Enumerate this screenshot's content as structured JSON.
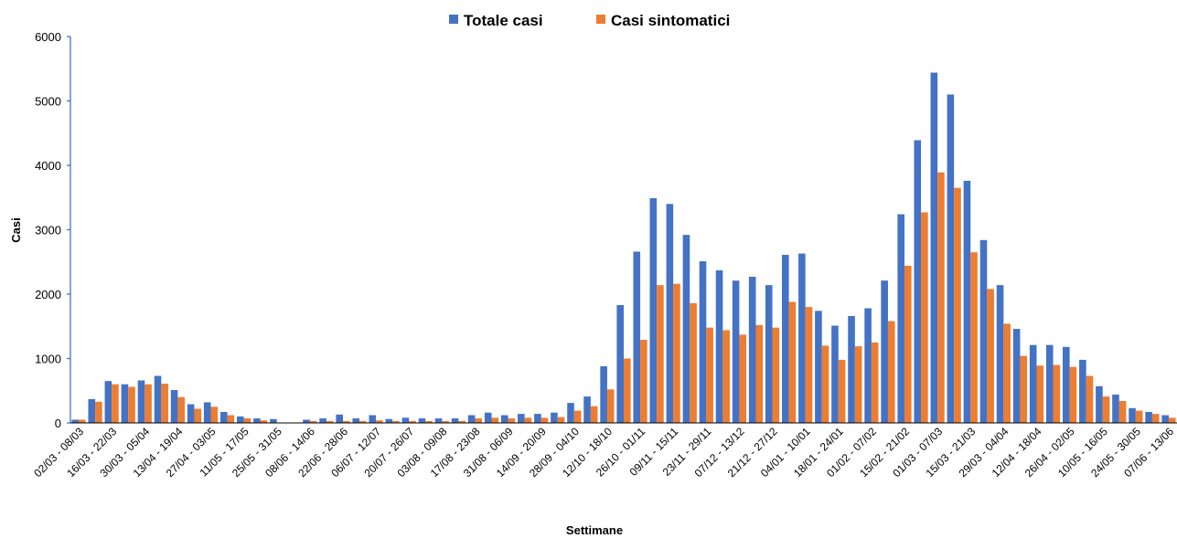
{
  "chart_data": {
    "type": "bar",
    "title": "",
    "xlabel": "Settimane",
    "ylabel": "Casi",
    "ylim": [
      0,
      6000
    ],
    "yticks": [
      "0",
      "1000",
      "2000",
      "3000",
      "4000",
      "5000",
      "6000"
    ],
    "grid": false,
    "legend_position": "top-center",
    "categories": [
      "02/03 - 08/03",
      "09/03 - 15/03",
      "16/03 - 22/03",
      "23/03 - 29/03",
      "30/03 - 05/04",
      "06/04 - 12/04",
      "13/04 - 19/04",
      "20/04 - 26/04",
      "27/04 - 03/05",
      "04/05 - 10/05",
      "11/05 - 17/05",
      "18/05 - 24/05",
      "25/05 - 31/05",
      "01/06 - 07/06",
      "08/06 - 14/06",
      "15/06 - 21/06",
      "22/06 - 28/06",
      "29/06 - 05/07",
      "06/07 - 12/07",
      "13/07 - 19/07",
      "20/07 - 26/07",
      "27/07 - 02/08",
      "03/08 - 09/08",
      "10/08 - 16/08",
      "17/08 - 23/08",
      "24/08 - 30/08",
      "31/08 - 06/09",
      "07/09 - 13/09",
      "14/09 - 20/09",
      "21/09 - 27/09",
      "28/09 - 04/10",
      "05/10 - 11/10",
      "12/10 - 18/10",
      "19/10 - 25/10",
      "26/10 - 01/11",
      "02/11 - 08/11",
      "09/11 - 15/11",
      "16/11 - 22/11",
      "23/11 - 29/11",
      "30/11 - 06/12",
      "07/12 - 13/12",
      "14/12 - 20/12",
      "21/12 - 27/12",
      "28/12 - 03/01",
      "04/01 - 10/01",
      "11/01 - 17/01",
      "18/01 - 24/01",
      "25/01 - 31/01",
      "01/02 - 07/02",
      "08/02 - 14/02",
      "15/02 - 21/02",
      "22/02 - 28/02",
      "01/03 - 07/03",
      "08/03 - 14/03",
      "15/03 - 21/03",
      "22/03 - 28/03",
      "29/03 - 04/04",
      "05/04 - 11/04",
      "12/04 - 18/04",
      "19/04 - 25/04",
      "26/04 - 02/05",
      "03/05 - 09/05",
      "10/05 - 16/05",
      "17/05 - 23/05",
      "24/05 - 30/05",
      "31/05 - 06/06",
      "07/06 - 13/06"
    ],
    "shown_category_labels": [
      "02/03 - 08/03",
      "16/03 - 22/03",
      "30/03 - 05/04",
      "13/04 - 19/04",
      "27/04 - 03/05",
      "11/05 - 17/05",
      "25/05 - 31/05",
      "08/06 - 14/06",
      "22/06 - 28/06",
      "06/07 - 12/07",
      "20/07 - 26/07",
      "03/08 - 09/08",
      "17/08 - 23/08",
      "31/08 - 06/09",
      "14/09 - 20/09",
      "28/09 - 04/10",
      "12/10 - 18/10",
      "26/10 - 01/11",
      "09/11 - 15/11",
      "23/11 - 29/11",
      "07/12 - 13/12",
      "21/12 - 27/12",
      "04/01 - 10/01",
      "18/01 - 24/01",
      "01/02 - 07/02",
      "15/02 - 21/02",
      "01/03 - 07/03",
      "15/03 - 21/03",
      "29/03 - 04/04",
      "12/04 - 18/04",
      "26/04 - 02/05",
      "10/05 - 16/05",
      "24/05 - 30/05",
      "07/06 - 13/06"
    ],
    "series": [
      {
        "name": "Totale casi",
        "color": "#4472C4",
        "values": [
          50,
          370,
          650,
          600,
          660,
          730,
          510,
          290,
          320,
          170,
          100,
          70,
          60,
          0,
          50,
          70,
          130,
          70,
          120,
          60,
          80,
          70,
          70,
          70,
          120,
          160,
          120,
          140,
          140,
          160,
          310,
          410,
          880,
          1830,
          2660,
          3490,
          3400,
          2920,
          2510,
          2370,
          2210,
          2270,
          2140,
          2610,
          2630,
          1740,
          1510,
          1660,
          1780,
          2210,
          3240,
          4390,
          5440,
          5100,
          3760,
          2840,
          2140,
          1460,
          1210,
          1210,
          1180,
          980,
          570,
          440,
          230,
          170,
          120
        ]
      },
      {
        "name": "Casi sintomatici",
        "color": "#ED7D31",
        "values": [
          50,
          330,
          600,
          560,
          600,
          610,
          400,
          220,
          250,
          120,
          70,
          40,
          0,
          0,
          30,
          30,
          30,
          30,
          40,
          30,
          30,
          30,
          30,
          30,
          70,
          80,
          70,
          80,
          80,
          90,
          190,
          260,
          520,
          1000,
          1290,
          2140,
          2160,
          1860,
          1480,
          1440,
          1370,
          1520,
          1480,
          1880,
          1800,
          1200,
          980,
          1190,
          1250,
          1580,
          2440,
          3270,
          3890,
          3650,
          2650,
          2080,
          1540,
          1040,
          890,
          900,
          870,
          730,
          410,
          340,
          190,
          140,
          80
        ]
      }
    ]
  }
}
